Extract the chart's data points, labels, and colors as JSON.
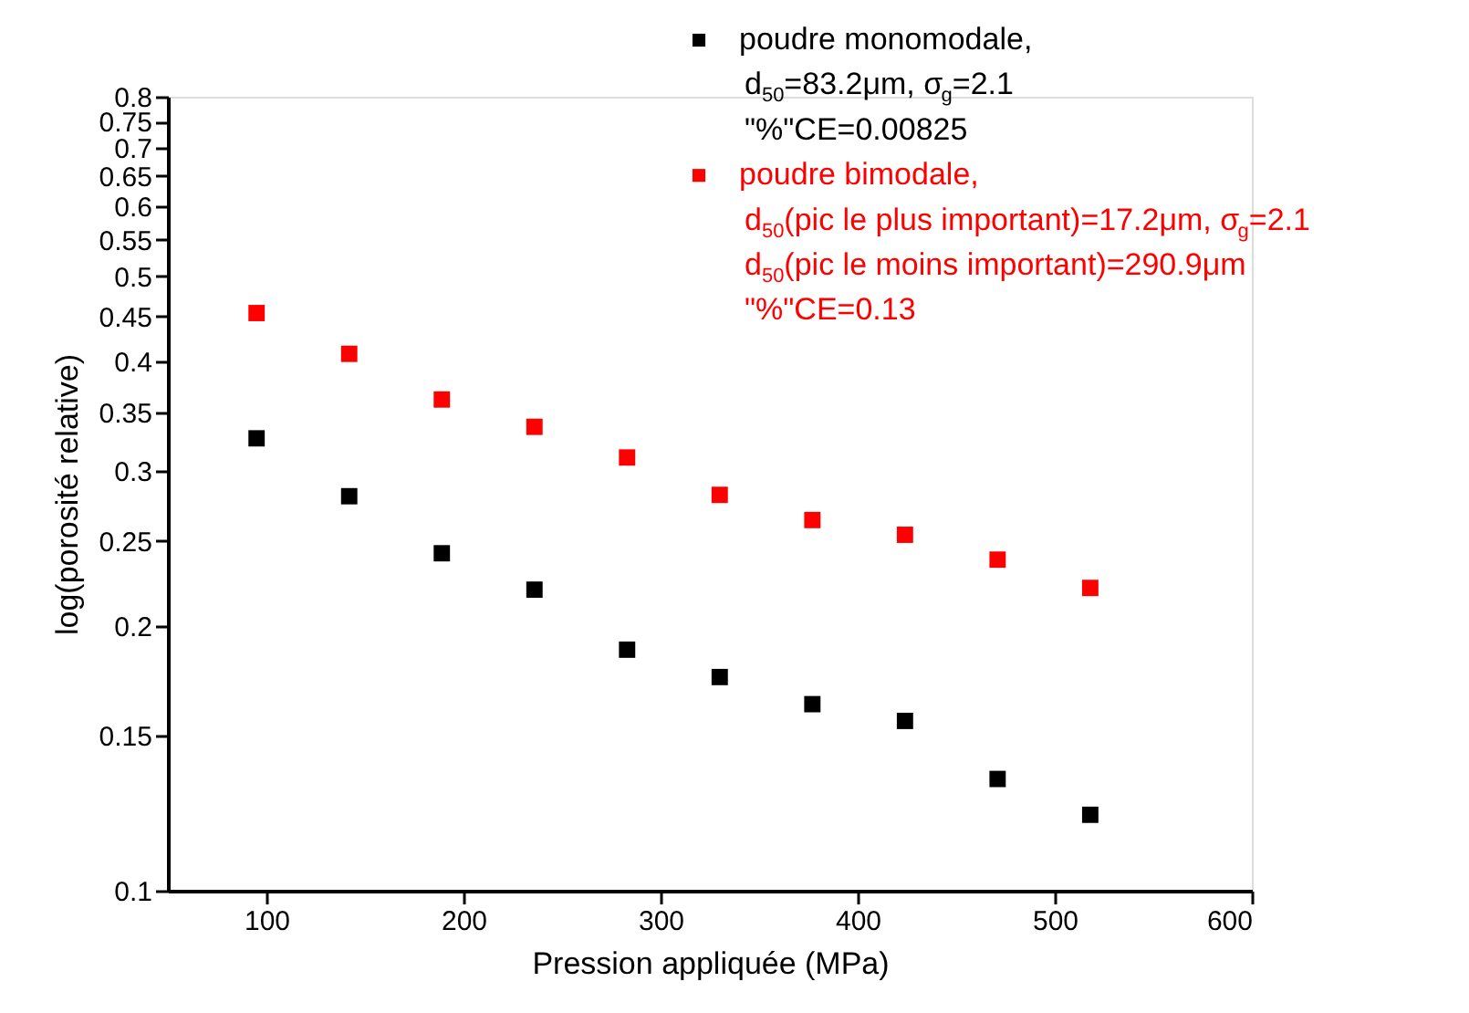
{
  "chart_data": {
    "type": "scatter",
    "xlabel": "Pression appliquée (MPa)",
    "ylabel": "log(porosité relative)",
    "x": [
      95,
      142,
      189,
      236,
      283,
      330,
      377,
      424,
      471,
      518
    ],
    "series": [
      {
        "name": "poudre monomodale,\nd$_{50}$=83.2μm, σ$_{g}$=2.1\n\"%\"CE=0.00825",
        "color": "#000000",
        "values": [
          0.327,
          0.281,
          0.242,
          0.22,
          0.188,
          0.175,
          0.163,
          0.156,
          0.134,
          0.122
        ]
      },
      {
        "name": "poudre bimodale,\nd$_{50}$(pic le plus important)=17.2μm, σ$_{g}$=2.1\nd$_{50}$(pic le moins important)=290.9μm\n\"%\"CE=0.13",
        "color": "#ff0000",
        "values": [
          0.454,
          0.408,
          0.362,
          0.337,
          0.311,
          0.282,
          0.264,
          0.254,
          0.238,
          0.221
        ]
      }
    ],
    "xlim": [
      50,
      600
    ],
    "xticks": [
      100,
      200,
      300,
      400,
      500,
      600
    ],
    "ylim": [
      0.1,
      0.8
    ],
    "yticks": [
      0.1,
      0.15,
      0.2,
      0.25,
      0.3,
      0.35,
      0.4,
      0.45,
      0.5,
      0.55,
      0.6,
      0.65,
      0.7,
      0.75,
      0.8
    ],
    "log": true,
    "grid": false,
    "legend": "top right",
    "marker": "square"
  }
}
